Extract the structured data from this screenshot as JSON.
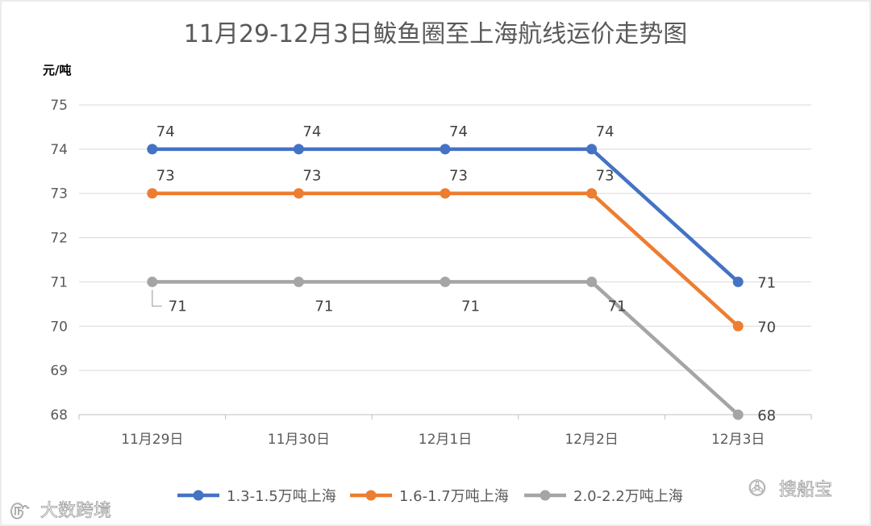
{
  "chart_data": {
    "type": "line",
    "title": "11月29-12月3日鲅鱼圈至上海航线运价走势图",
    "ylabel": "元/吨",
    "xlabel": "",
    "categories": [
      "11月29日",
      "11月30日",
      "12月1日",
      "12月2日",
      "12月3日"
    ],
    "ylim": [
      68,
      75
    ],
    "yticks": [
      68,
      69,
      70,
      71,
      72,
      73,
      74,
      75
    ],
    "grid": true,
    "legend_position": "bottom",
    "series": [
      {
        "name": "1.3-1.5万吨上海",
        "values": [
          74,
          74,
          74,
          74,
          71
        ],
        "color": "#4472C4"
      },
      {
        "name": "1.6-1.7万吨上海",
        "values": [
          73,
          73,
          73,
          73,
          70
        ],
        "color": "#ED7D31"
      },
      {
        "name": "2.0-2.2万吨上海",
        "values": [
          71,
          71,
          71,
          71,
          68
        ],
        "color": "#A5A5A5"
      }
    ]
  },
  "watermarks": {
    "left": "大数跨境",
    "right": "搜船宝"
  }
}
